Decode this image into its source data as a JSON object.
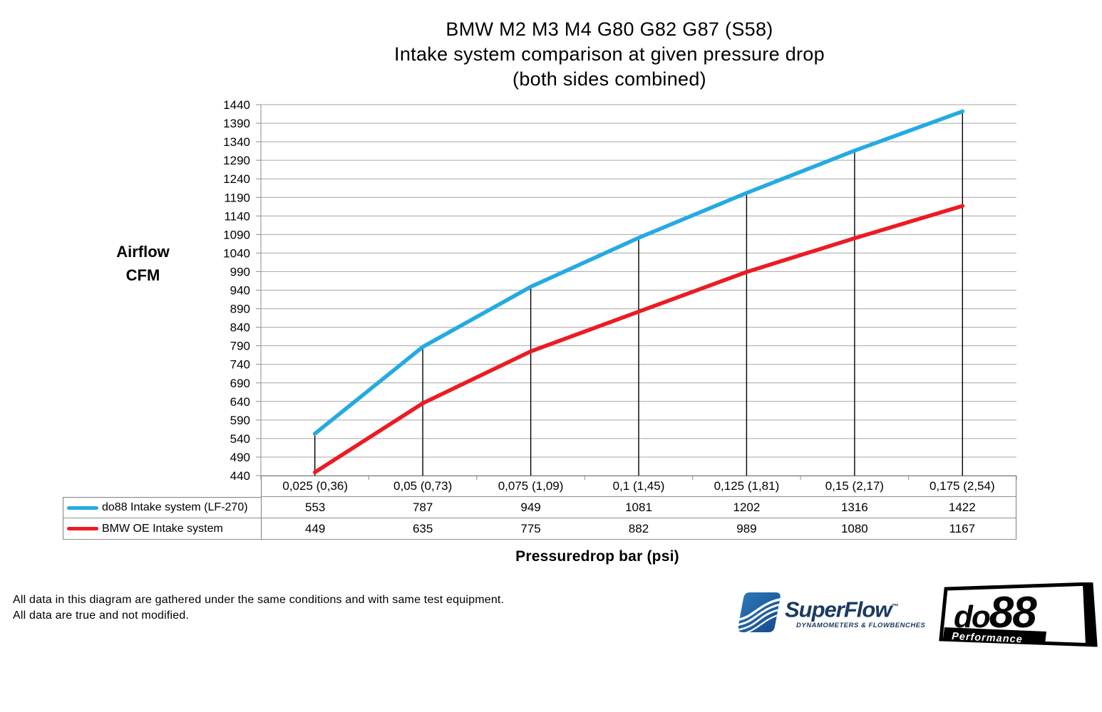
{
  "title": {
    "line1": "BMW M2 M3 M4 G80 G82 G87 (S58)",
    "line2": "Intake system comparison at given pressure drop",
    "line3": "(both sides combined)"
  },
  "y_axis_title": {
    "line1": "Airflow",
    "line2": "CFM"
  },
  "x_axis_title": "Pressuredrop bar (psi)",
  "chart_data": {
    "type": "line",
    "title": "BMW M2 M3 M4 G80 G82 G87 (S58) Intake system comparison at given pressure drop (both sides combined)",
    "xlabel": "Pressuredrop bar (psi)",
    "ylabel": "Airflow CFM",
    "categories": [
      "0,025 (0,36)",
      "0,05 (0,73)",
      "0,075 (1,09)",
      "0,1 (1,45)",
      "0,125 (1,81)",
      "0,15 (2,17)",
      "0,175 (2,54)"
    ],
    "series": [
      {
        "name": "do88 Intake system (LF-270)",
        "color": "#25aae1",
        "values": [
          553,
          787,
          949,
          1081,
          1202,
          1316,
          1422
        ]
      },
      {
        "name": "BMW OE Intake system",
        "color": "#ec1b23",
        "values": [
          449,
          635,
          775,
          882,
          989,
          1080,
          1167
        ]
      }
    ],
    "ylim": [
      440,
      1440
    ],
    "y_step": 50,
    "y_ticks": [
      440,
      490,
      540,
      590,
      640,
      690,
      740,
      790,
      840,
      890,
      940,
      990,
      1040,
      1090,
      1140,
      1190,
      1240,
      1290,
      1340,
      1390,
      1440
    ],
    "grid": true,
    "drop_lines": true,
    "legend_position": "table-left"
  },
  "colors": {
    "gridline": "#a6a6a6",
    "axis": "#8c8c8c",
    "drop_line": "#000000"
  },
  "footer": {
    "line1": "All data in this diagram are gathered under the same conditions and with same test equipment.",
    "line2": "All data are true and not modified."
  },
  "logos": {
    "superflow": {
      "name": "SuperFlow",
      "tm": "™",
      "subtitle": "DYNAMOMETERS & FLOWBENCHES"
    },
    "do88": {
      "name_left": "do",
      "name_right": "88",
      "subtitle": "Performance"
    }
  }
}
